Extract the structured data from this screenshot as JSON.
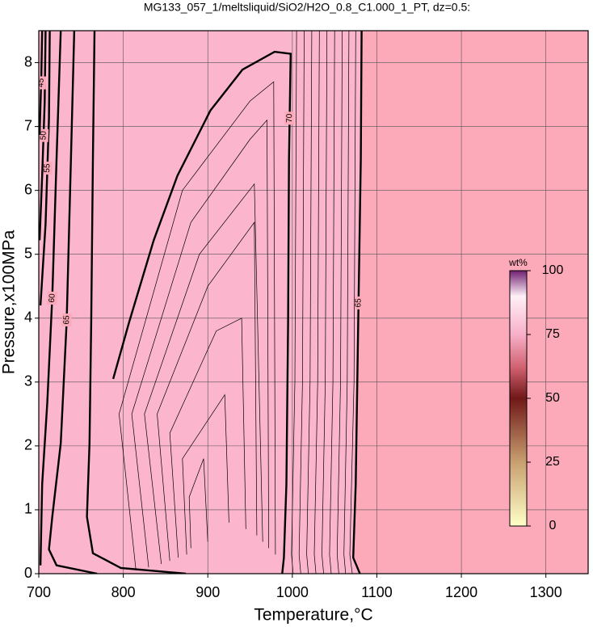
{
  "chart_data": {
    "type": "contour",
    "title": "MG133_057_1/meltsliquid/SiO2/H2O_0.8_C1.000_1_PT, dz=0.5:",
    "x_label": "Temperature,°C",
    "y_label": "Pressure,x100MPa",
    "xlim": [
      700,
      1350
    ],
    "ylim": [
      0,
      8.5
    ],
    "xticks": [
      700,
      800,
      900,
      1000,
      1100,
      1200,
      1300
    ],
    "yticks": [
      0,
      1,
      2,
      3,
      4,
      5,
      6,
      7,
      8
    ],
    "grid": true,
    "background": "#fca9b9",
    "contours": [
      {
        "level": 65,
        "labeled": true,
        "x": [
          1082,
          1081,
          1078,
          1075,
          1072,
          1080
        ],
        "y": [
          8.5,
          6.49,
          3.94,
          1.4,
          0.25,
          0
        ]
      },
      {
        "level": 70,
        "labeled": true,
        "x": [
          988,
          990,
          993,
          995,
          996,
          998,
          979,
          941,
          903,
          864,
          836,
          807,
          788
        ],
        "y": [
          0,
          0.25,
          1.4,
          3.94,
          6.49,
          8.14,
          8.17,
          7.89,
          7.25,
          6.23,
          5.22,
          3.94,
          3.05
        ]
      },
      {
        "level": 70,
        "labeled": false,
        "x": [
          766,
          764,
          762,
          760,
          757,
          764,
          797,
          874
        ],
        "y": [
          8.5,
          6.49,
          3.94,
          2.04,
          0.89,
          0.32,
          0.09,
          0
        ]
      },
      {
        "level": 65,
        "labeled": true,
        "x": [
          742,
          738,
          733,
          726,
          716,
          712,
          721,
          769
        ],
        "y": [
          8.5,
          6.49,
          3.94,
          2.04,
          0.89,
          0.38,
          0.13,
          0
        ]
      },
      {
        "level": 60,
        "labeled": true,
        "x": [
          726,
          721,
          716,
          710,
          704,
          702
        ],
        "y": [
          8.5,
          6.49,
          4.33,
          2.67,
          1.4,
          0.13
        ]
      },
      {
        "level": 55,
        "labeled": true,
        "x": [
          713,
          712,
          708,
          702
        ],
        "y": [
          8.5,
          7.12,
          5.47,
          4.2
        ]
      },
      {
        "level": 50,
        "labeled": true,
        "x": [
          708,
          707,
          704,
          701
        ],
        "y": [
          8.5,
          7.38,
          6.23,
          5.22
        ]
      },
      {
        "level": 45,
        "labeled": true,
        "x": [
          704,
          703,
          701
        ],
        "y": [
          8.5,
          7.76,
          6.87
        ]
      },
      {
        "level": 70.5,
        "labeled": false,
        "x": [
          815,
          795,
          870,
          950,
          978,
          980
        ],
        "y": [
          0.05,
          2.5,
          6,
          7.4,
          7.7,
          0.3
        ]
      },
      {
        "level": 71,
        "labeled": false,
        "x": [
          830,
          810,
          880,
          950,
          970,
          972
        ],
        "y": [
          0.1,
          2.5,
          5.5,
          6.8,
          7.1,
          0.4
        ]
      },
      {
        "level": 71.5,
        "labeled": false,
        "x": [
          845,
          825,
          890,
          955,
          965
        ],
        "y": [
          0.15,
          2.5,
          5,
          6.1,
          0.5
        ]
      },
      {
        "level": 72,
        "labeled": false,
        "x": [
          855,
          840,
          900,
          955,
          958
        ],
        "y": [
          0.2,
          2.5,
          4.5,
          5.5,
          0.6
        ]
      },
      {
        "level": 72.5,
        "labeled": false,
        "x": [
          865,
          855,
          910,
          940,
          945
        ],
        "y": [
          0.25,
          2.2,
          3.8,
          4,
          0.7
        ]
      },
      {
        "level": 73,
        "labeled": false,
        "x": [
          875,
          870,
          920,
          925
        ],
        "y": [
          0.3,
          1.8,
          2.8,
          0.8
        ]
      },
      {
        "level": 73.5,
        "labeled": false,
        "x": [
          880,
          878,
          895,
          900
        ],
        "y": [
          0.4,
          1.2,
          1.8,
          0.5
        ]
      },
      {
        "level": 69.5,
        "labeled": false,
        "x": [
          1005,
          1003,
          999,
          1001
        ],
        "y": [
          8.5,
          3,
          0.3,
          0
        ]
      },
      {
        "level": 69,
        "labeled": false,
        "x": [
          1014,
          1012,
          1008,
          1010
        ],
        "y": [
          8.5,
          3,
          0.3,
          0
        ]
      },
      {
        "level": 68.5,
        "labeled": false,
        "x": [
          1023,
          1021,
          1017,
          1019
        ],
        "y": [
          8.5,
          3,
          0.3,
          0
        ]
      },
      {
        "level": 68,
        "labeled": false,
        "x": [
          1032,
          1030,
          1026,
          1028
        ],
        "y": [
          8.5,
          3,
          0.3,
          0
        ]
      },
      {
        "level": 67.5,
        "labeled": false,
        "x": [
          1041,
          1039,
          1035,
          1037
        ],
        "y": [
          8.5,
          3,
          0.3,
          0
        ]
      },
      {
        "level": 67,
        "labeled": false,
        "x": [
          1050,
          1048,
          1044,
          1046
        ],
        "y": [
          8.5,
          3,
          0.3,
          0
        ]
      },
      {
        "level": 66.5,
        "labeled": false,
        "x": [
          1059,
          1057,
          1053,
          1055
        ],
        "y": [
          8.5,
          3,
          0.3,
          0
        ]
      },
      {
        "level": 66,
        "labeled": false,
        "x": [
          1067,
          1065,
          1061,
          1063
        ],
        "y": [
          8.5,
          3,
          0.3,
          0
        ]
      },
      {
        "level": 65.5,
        "labeled": false,
        "x": [
          1075,
          1073,
          1068,
          1071
        ],
        "y": [
          8.5,
          3,
          0.3,
          0
        ]
      }
    ],
    "colorbar": {
      "label": "wt%",
      "lim": [
        0,
        100
      ],
      "ticks": [
        0,
        25,
        50,
        75,
        100
      ],
      "stops": [
        [
          0,
          "#ffffc8"
        ],
        [
          25,
          "#c8a070"
        ],
        [
          50,
          "#701818"
        ],
        [
          62,
          "#d06070"
        ],
        [
          75,
          "#f8b0c8"
        ],
        [
          90,
          "#fff0f8"
        ],
        [
          100,
          "#702070"
        ]
      ]
    }
  }
}
